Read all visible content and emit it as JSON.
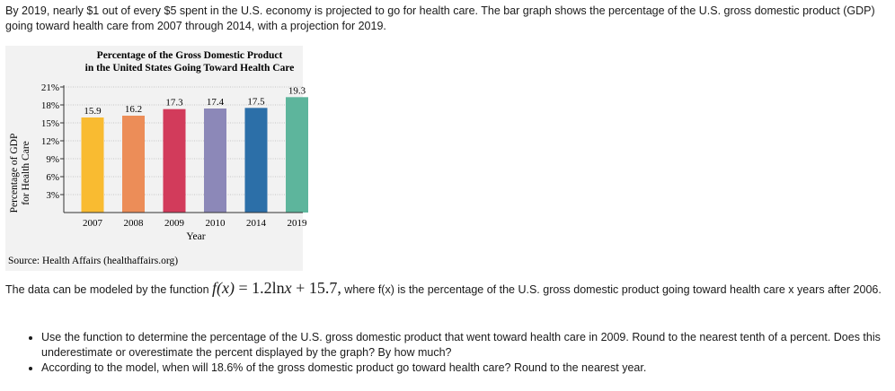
{
  "intro_text": "By 2019, nearly $1 out of every $5 spent in the U.S. economy is projected to go for health care.  The bar graph shows the percentage of the U.S. gross domestic product (GDP) going toward health care from 2007 through 2014, with a projection for 2019.",
  "chart_data": {
    "type": "bar",
    "title_line1": "Percentage of the Gross Domestic Product",
    "title_line2": "in the United States Going Toward Health Care",
    "categories": [
      "2007",
      "2008",
      "2009",
      "2010",
      "2014",
      "2019"
    ],
    "values": [
      15.9,
      16.2,
      17.3,
      17.4,
      17.5,
      19.3
    ],
    "value_labels": [
      "15.9",
      "16.2",
      "17.3",
      "17.4",
      "17.5",
      "19.3"
    ],
    "colors": [
      "#f9bb31",
      "#ec8d58",
      "#d23b5b",
      "#8c88b8",
      "#2c6fa8",
      "#5db59c"
    ],
    "xlabel": "Year",
    "ylabel_line1": "Percentage of GDP",
    "ylabel_line2": "for Health Care",
    "ylim": [
      0,
      21
    ],
    "y_ticks": [
      3,
      6,
      9,
      12,
      15,
      18,
      21
    ],
    "y_tick_labels": [
      "3%",
      "6%",
      "9%",
      "12%",
      "15%",
      "18%",
      "21%"
    ],
    "grid": "dotted horizontal",
    "source": "Source: Health Affairs (healthaffairs.org)"
  },
  "model": {
    "prefix": "The data can be modeled by the function",
    "formula_lhs": "f(x)",
    "formula_eq": " = 1.2ln",
    "formula_var": "x",
    "formula_rest": " + 15.7,",
    "suffix": " where f(x) is the percentage of the U.S. gross domestic product going toward health care x years after 2006."
  },
  "questions": [
    "Use the function to determine the percentage of the U.S. gross domestic product that went toward health care in 2009.  Round to the nearest tenth of a percent.  Does this underestimate or overestimate the percent displayed by the graph?  By how much?",
    "According to the model, when will 18.6% of the gross domestic product go toward health care? Round to the nearest year."
  ]
}
